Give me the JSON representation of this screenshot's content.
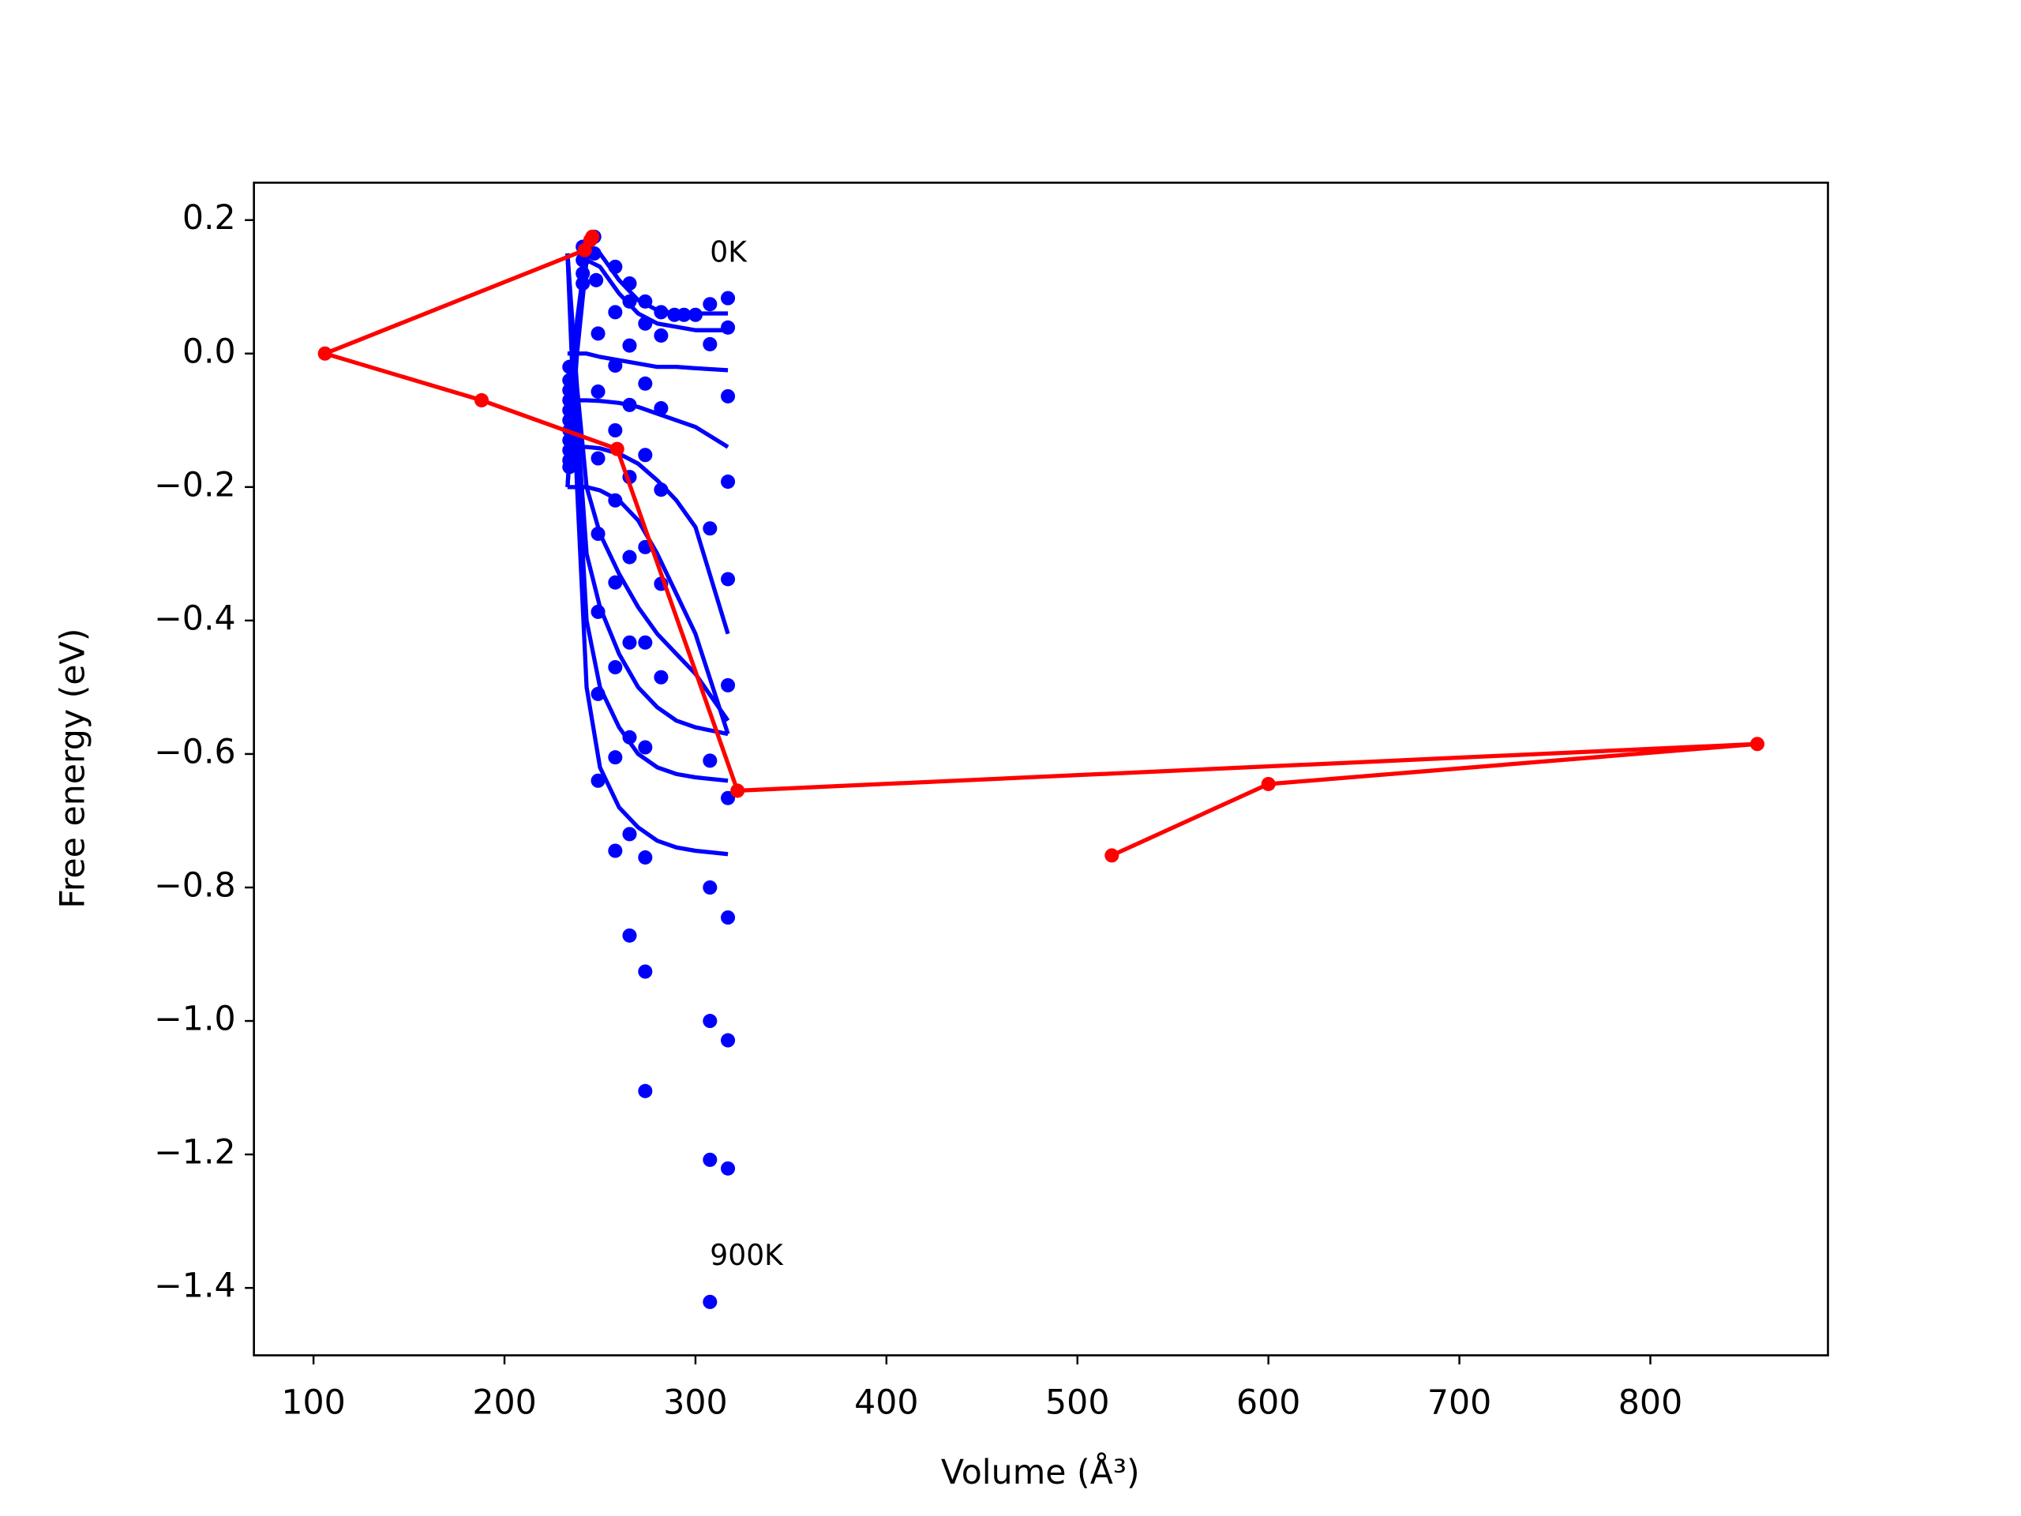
{
  "chart_data": {
    "type": "scatter",
    "xlabel": "Volume (Å³)",
    "ylabel": "Free energy (eV)",
    "annotations": [
      "0K",
      "900K"
    ],
    "xlim": [
      68.8,
      893
    ],
    "ylim": [
      -1.501,
      0.256
    ],
    "xticks": [
      100,
      200,
      300,
      400,
      500,
      600,
      700,
      800
    ],
    "yticks": [
      0.2,
      {
        "value": 0.0,
        "label": "0.0"
      },
      {
        "value": -0.2,
        "label": "−0.2"
      },
      {
        "value": -0.4,
        "label": "−0.4"
      },
      {
        "value": -0.6,
        "label": "−0.6"
      },
      {
        "value": -0.8,
        "label": "−0.8"
      },
      {
        "value": -1.0,
        "label": "−1.0"
      },
      {
        "value": -1.2,
        "label": "−1.2"
      },
      {
        "value": -1.4,
        "label": "−1.4"
      }
    ],
    "series": [
      {
        "style": "markers",
        "color": "#0000ff",
        "x": [
          234,
          234,
          234,
          234,
          234,
          234,
          234,
          234,
          234,
          234,
          234,
          241,
          241,
          241,
          241,
          247,
          247,
          248,
          249,
          249,
          249,
          249,
          249,
          249,
          249,
          258,
          258,
          258,
          258,
          258,
          258,
          258,
          258,
          258,
          265.5,
          265.5,
          265.5,
          265.5,
          265.5,
          265.5,
          265.5,
          265.5,
          265.5,
          265.5,
          273.7,
          273.7,
          273.7,
          273.7,
          273.7,
          273.7,
          273.7,
          273.7,
          273.7,
          273.7,
          282,
          282,
          282,
          282,
          282,
          282,
          289,
          294,
          300,
          307.6,
          307.6,
          307.6,
          307.6,
          307.6,
          307.6,
          307.6,
          307.6,
          317,
          317,
          317,
          317,
          317,
          317,
          317,
          317,
          317,
          317
        ],
        "values": [
          -0.02,
          -0.04,
          -0.055,
          -0.07,
          -0.085,
          -0.1,
          -0.115,
          -0.13,
          -0.145,
          -0.16,
          -0.17,
          0.16,
          0.14,
          0.12,
          0.105,
          0.175,
          0.15,
          0.11,
          0.03,
          -0.057,
          -0.157,
          -0.27,
          -0.387,
          -0.51,
          -0.64,
          0.13,
          0.062,
          -0.018,
          -0.115,
          -0.22,
          -0.343,
          -0.47,
          -0.605,
          -0.745,
          0.105,
          0.078,
          0.012,
          -0.077,
          -0.185,
          -0.305,
          -0.433,
          -0.575,
          -0.72,
          -0.872,
          0.078,
          0.045,
          -0.045,
          -0.152,
          -0.29,
          -0.433,
          -0.59,
          -0.755,
          -0.926,
          -1.105,
          0.062,
          0.027,
          -0.082,
          -0.204,
          -0.345,
          -0.485,
          0.058,
          0.058,
          0.058,
          0.074,
          0.014,
          -0.262,
          -0.61,
          -0.8,
          -1.0,
          -1.208,
          -1.421,
          0.083,
          0.039,
          -0.064,
          -0.192,
          -0.338,
          -0.497,
          -0.666,
          -0.845,
          -1.029,
          -1.221
        ]
      },
      {
        "style": "line",
        "color": "#0000ff",
        "x": [
          233,
          238,
          243,
          250,
          260,
          270,
          280,
          290,
          300,
          317
        ],
        "values": [
          -0.2,
          0.05,
          0.16,
          0.15,
          0.11,
          0.08,
          0.065,
          0.06,
          0.06,
          0.06
        ]
      },
      {
        "style": "line",
        "color": "#0000ff",
        "x": [
          233,
          238,
          243,
          250,
          260,
          270,
          280,
          290,
          300,
          317
        ],
        "values": [
          -0.2,
          0.0,
          0.14,
          0.13,
          0.09,
          0.06,
          0.045,
          0.04,
          0.035,
          0.035
        ]
      },
      {
        "style": "line",
        "color": "#0000ff",
        "x": [
          233,
          238,
          243,
          250,
          260,
          270,
          280,
          290,
          300,
          317
        ],
        "values": [
          0.0,
          0.0,
          0.0,
          -0.005,
          -0.01,
          -0.015,
          -0.02,
          -0.02,
          -0.022,
          -0.025
        ]
      },
      {
        "style": "line",
        "color": "#0000ff",
        "x": [
          233,
          238,
          243,
          250,
          260,
          270,
          280,
          290,
          300,
          317
        ],
        "values": [
          -0.07,
          -0.07,
          -0.07,
          -0.071,
          -0.074,
          -0.08,
          -0.09,
          -0.1,
          -0.11,
          -0.14
        ]
      },
      {
        "style": "line",
        "color": "#0000ff",
        "x": [
          233,
          238,
          243,
          250,
          260,
          270,
          280,
          290,
          300,
          317
        ],
        "values": [
          -0.14,
          -0.14,
          -0.14,
          -0.142,
          -0.15,
          -0.165,
          -0.19,
          -0.22,
          -0.26,
          -0.42
        ]
      },
      {
        "style": "line",
        "color": "#0000ff",
        "x": [
          233,
          238,
          243,
          250,
          260,
          270,
          280,
          290,
          300,
          317
        ],
        "values": [
          -0.2,
          -0.2,
          -0.2,
          -0.205,
          -0.22,
          -0.25,
          -0.3,
          -0.36,
          -0.42,
          -0.57
        ]
      },
      {
        "style": "line",
        "color": "#0000ff",
        "x": [
          233,
          238,
          243,
          250,
          260,
          270,
          280,
          290,
          300,
          317
        ],
        "values": [
          0.15,
          -0.05,
          -0.2,
          -0.27,
          -0.33,
          -0.38,
          -0.42,
          -0.45,
          -0.48,
          -0.55
        ]
      },
      {
        "style": "line",
        "color": "#0000ff",
        "x": [
          233,
          238,
          243,
          250,
          260,
          270,
          280,
          290,
          300,
          317
        ],
        "values": [
          0.15,
          -0.1,
          -0.3,
          -0.38,
          -0.45,
          -0.5,
          -0.53,
          -0.55,
          -0.56,
          -0.57
        ]
      },
      {
        "style": "line",
        "color": "#0000ff",
        "x": [
          233,
          238,
          243,
          250,
          260,
          270,
          280,
          290,
          300,
          317
        ],
        "values": [
          0.15,
          -0.15,
          -0.4,
          -0.5,
          -0.56,
          -0.6,
          -0.62,
          -0.63,
          -0.635,
          -0.64
        ]
      },
      {
        "style": "line",
        "color": "#0000ff",
        "x": [
          233,
          238,
          243,
          250,
          260,
          270,
          280,
          290,
          300,
          317
        ],
        "values": [
          0.15,
          -0.2,
          -0.5,
          -0.62,
          -0.68,
          -0.71,
          -0.73,
          -0.74,
          -0.745,
          -0.75
        ]
      },
      {
        "style": "line+markers",
        "color": "#ff0000",
        "x": [
          518,
          600,
          856,
          322,
          259,
          188,
          106,
          242,
          245,
          246
        ],
        "values": [
          -0.752,
          -0.645,
          -0.585,
          -0.655,
          -0.143,
          -0.07,
          0.0,
          0.155,
          0.17,
          0.175
        ]
      }
    ]
  }
}
